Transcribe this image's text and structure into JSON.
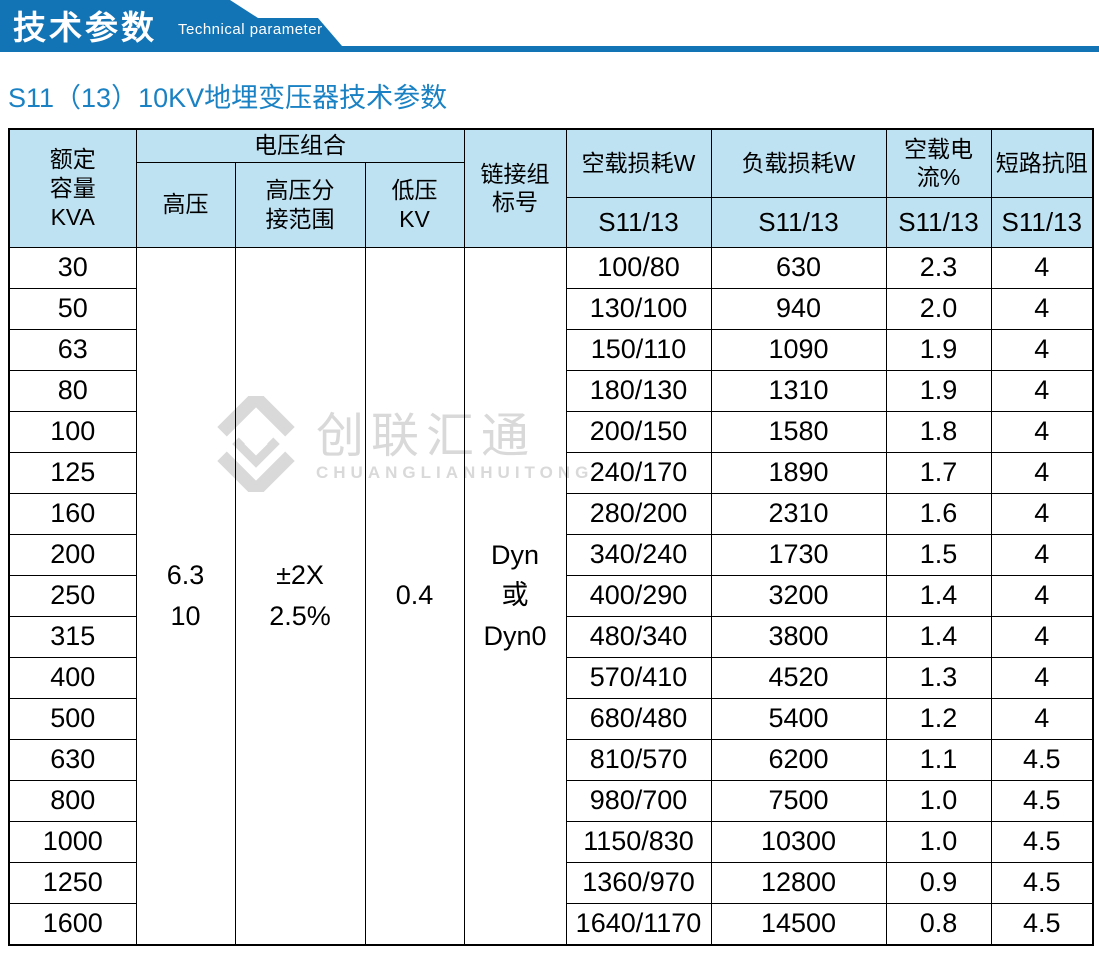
{
  "banner": {
    "title": "技术参数",
    "subtitle": "Technical parameter"
  },
  "page_title": "S11（13）10KV地埋变压器技术参数",
  "colors": {
    "banner_blue": "#1374b5",
    "title_blue": "#1a82c4",
    "table_header_bg": "#bfe2f2",
    "watermark_gray": "#d9d9d9",
    "border": "#000000"
  },
  "watermark": {
    "logo_icon": "diamond-interlock-logo",
    "cn": "创联汇通",
    "en": "CHUANGLIANHUITONG"
  },
  "table": {
    "headers": {
      "capacity": "额定\n容量\nKVA",
      "voltage_group": "电压组合",
      "high_voltage": "高压",
      "tap_range": "高压分\n接范围",
      "low_voltage": "低压\nKV",
      "connection": "链接组\n标号",
      "no_load_loss": "空载损耗W",
      "load_loss": "负载损耗W",
      "no_load_current": "空载电流%",
      "impedance": "短路抗阻",
      "sub": "S11/13"
    },
    "merged": {
      "high_voltage": "6.3\n10",
      "tap_range": "±2X\n2.5%",
      "low_voltage": "0.4",
      "connection": "Dyn\n或\nDyn0"
    },
    "rows": [
      {
        "capacity": "30",
        "no_load_loss": "100/80",
        "load_loss": "630",
        "no_load_current": "2.3",
        "impedance": "4"
      },
      {
        "capacity": "50",
        "no_load_loss": "130/100",
        "load_loss": "940",
        "no_load_current": "2.0",
        "impedance": "4"
      },
      {
        "capacity": "63",
        "no_load_loss": "150/110",
        "load_loss": "1090",
        "no_load_current": "1.9",
        "impedance": "4"
      },
      {
        "capacity": "80",
        "no_load_loss": "180/130",
        "load_loss": "1310",
        "no_load_current": "1.9",
        "impedance": "4"
      },
      {
        "capacity": "100",
        "no_load_loss": "200/150",
        "load_loss": "1580",
        "no_load_current": "1.8",
        "impedance": "4"
      },
      {
        "capacity": "125",
        "no_load_loss": "240/170",
        "load_loss": "1890",
        "no_load_current": "1.7",
        "impedance": "4"
      },
      {
        "capacity": "160",
        "no_load_loss": "280/200",
        "load_loss": "2310",
        "no_load_current": "1.6",
        "impedance": "4"
      },
      {
        "capacity": "200",
        "no_load_loss": "340/240",
        "load_loss": "1730",
        "no_load_current": "1.5",
        "impedance": "4"
      },
      {
        "capacity": "250",
        "no_load_loss": "400/290",
        "load_loss": "3200",
        "no_load_current": "1.4",
        "impedance": "4"
      },
      {
        "capacity": "315",
        "no_load_loss": "480/340",
        "load_loss": "3800",
        "no_load_current": "1.4",
        "impedance": "4"
      },
      {
        "capacity": "400",
        "no_load_loss": "570/410",
        "load_loss": "4520",
        "no_load_current": "1.3",
        "impedance": "4"
      },
      {
        "capacity": "500",
        "no_load_loss": "680/480",
        "load_loss": "5400",
        "no_load_current": "1.2",
        "impedance": "4"
      },
      {
        "capacity": "630",
        "no_load_loss": "810/570",
        "load_loss": "6200",
        "no_load_current": "1.1",
        "impedance": "4.5"
      },
      {
        "capacity": "800",
        "no_load_loss": "980/700",
        "load_loss": "7500",
        "no_load_current": "1.0",
        "impedance": "4.5"
      },
      {
        "capacity": "1000",
        "no_load_loss": "1150/830",
        "load_loss": "10300",
        "no_load_current": "1.0",
        "impedance": "4.5"
      },
      {
        "capacity": "1250",
        "no_load_loss": "1360/970",
        "load_loss": "12800",
        "no_load_current": "0.9",
        "impedance": "4.5"
      },
      {
        "capacity": "1600",
        "no_load_loss": "1640/1170",
        "load_loss": "14500",
        "no_load_current": "0.8",
        "impedance": "4.5"
      }
    ]
  }
}
